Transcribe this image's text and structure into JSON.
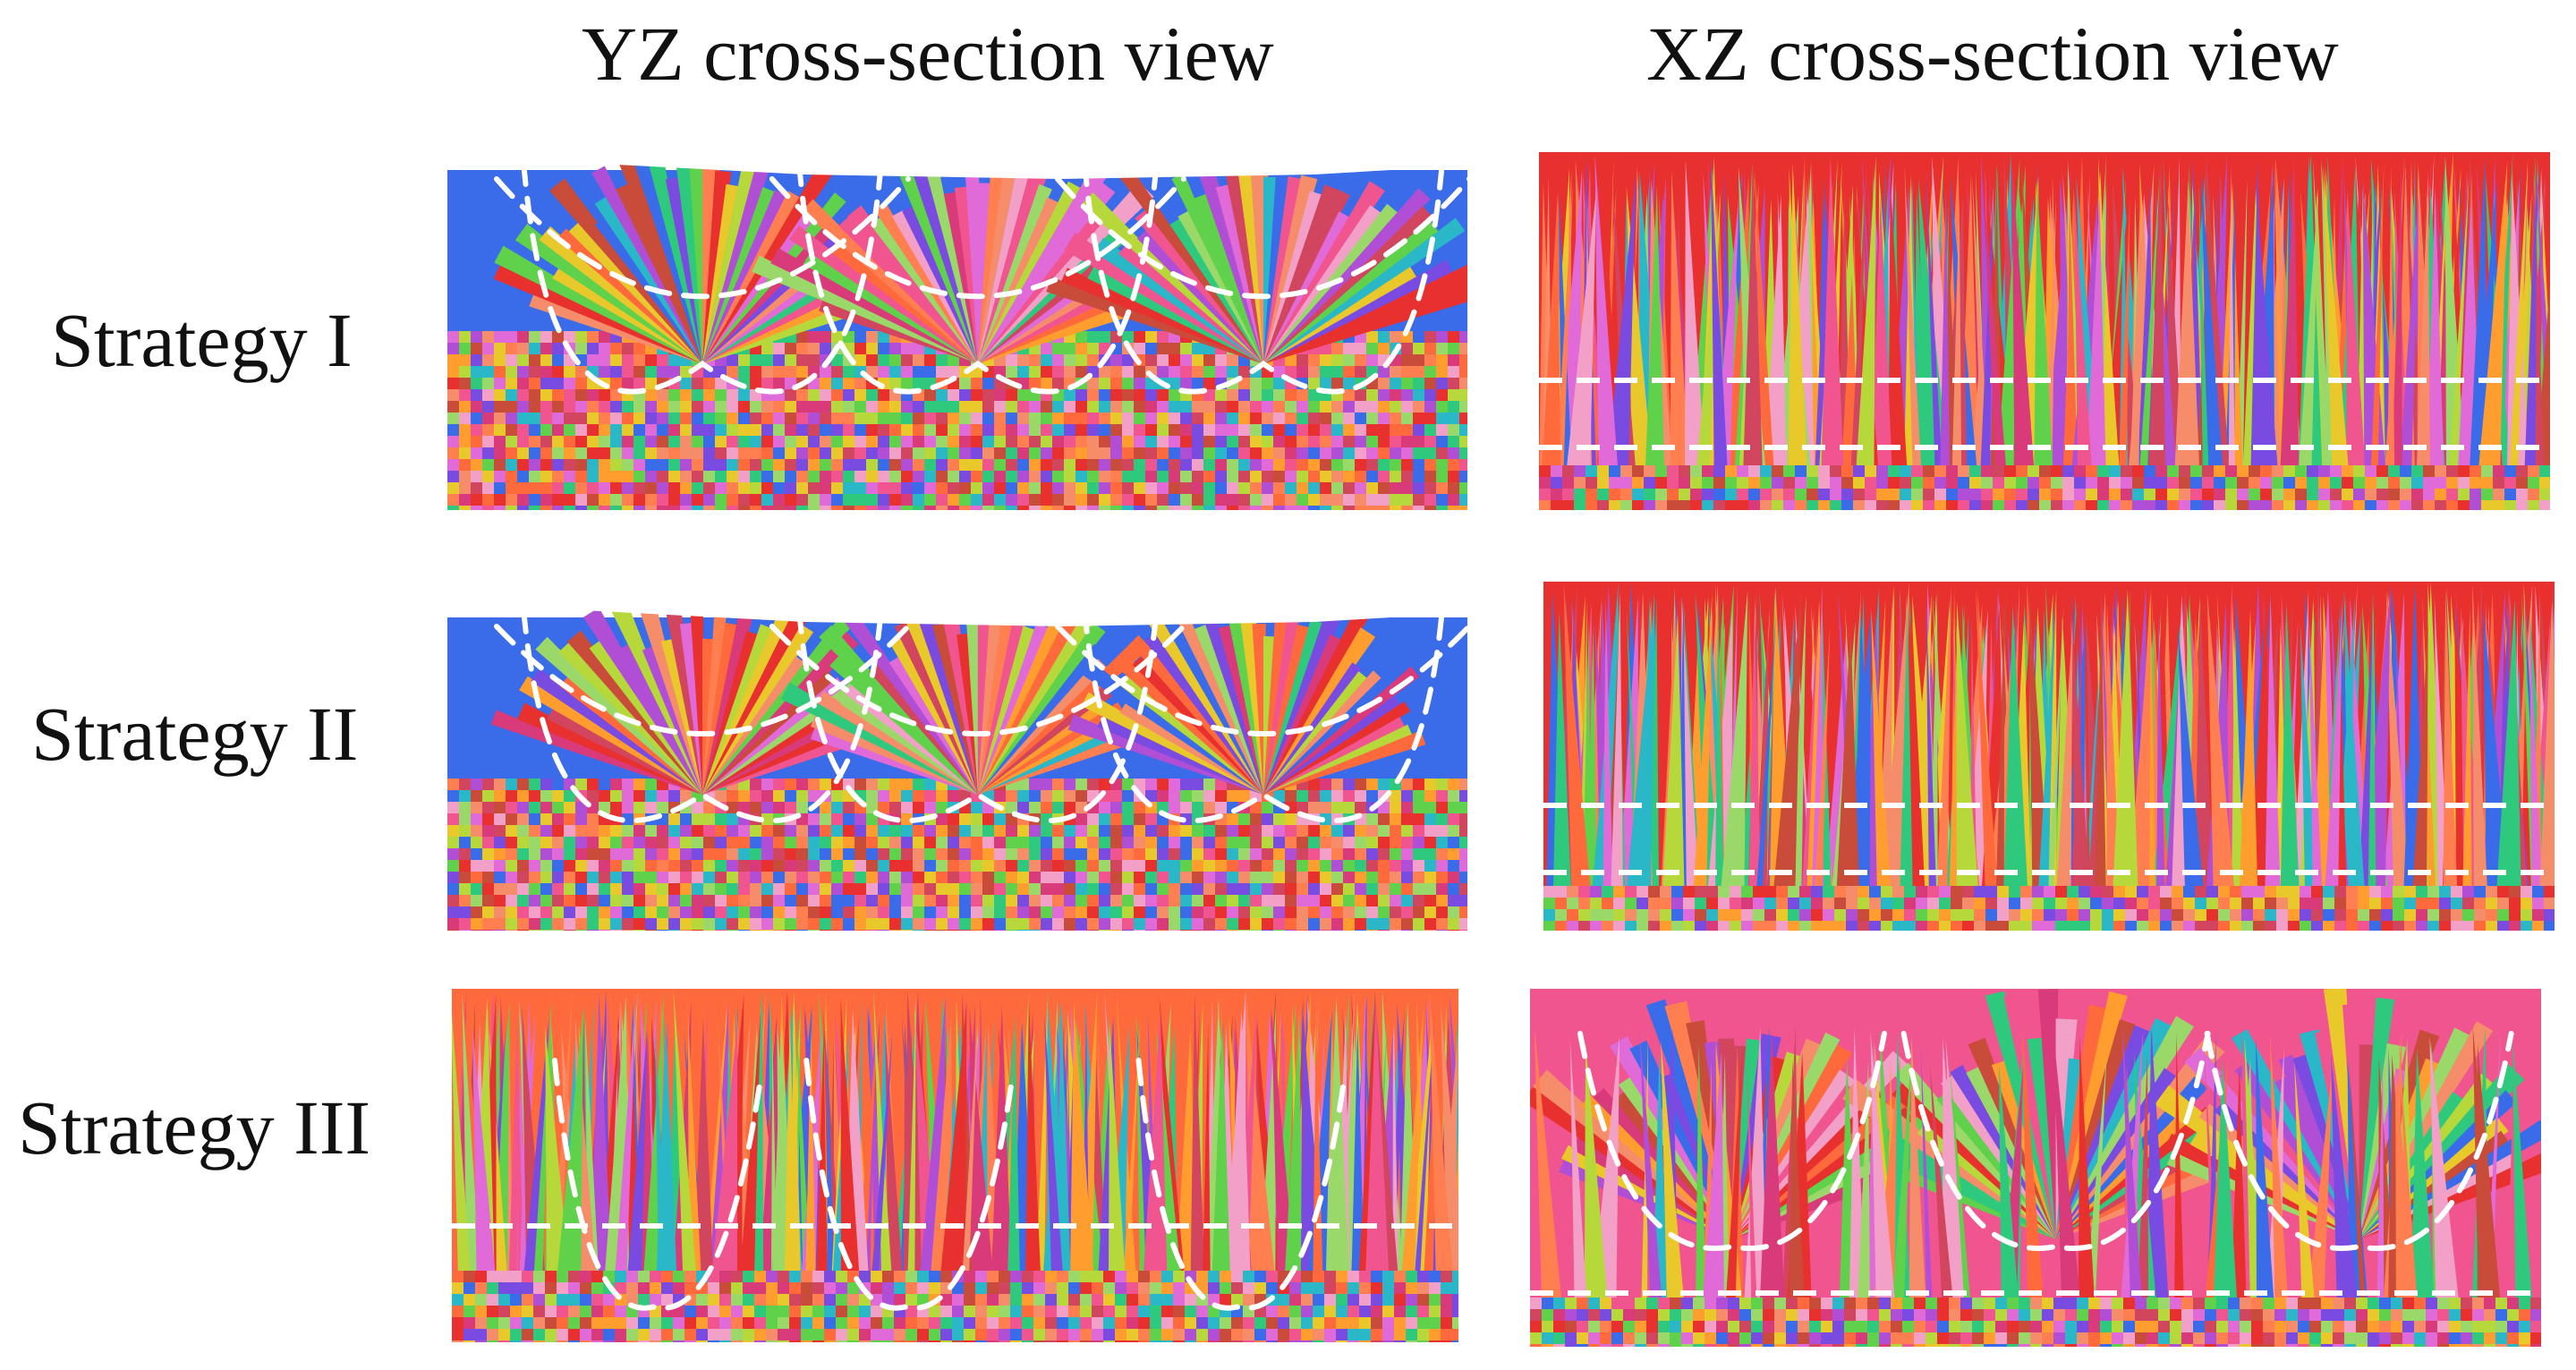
{
  "columns": {
    "yz_title": "YZ cross-section view",
    "xz_title": "XZ cross-section view"
  },
  "rows": [
    {
      "label": "Strategy I"
    },
    {
      "label": "Strategy II"
    },
    {
      "label": "Strategy III"
    }
  ],
  "colors": {
    "background": "#ffffff",
    "boundary_line": "#ffffff",
    "grain_palette": [
      "#e8312f",
      "#ff6a3d",
      "#f0558f",
      "#d93a7a",
      "#ff9d2e",
      "#e9c82c",
      "#b6d83a",
      "#5fd14a",
      "#2fc97d",
      "#2ab7c8",
      "#3a6be8",
      "#7a4be0",
      "#b04fd6",
      "#e06bd8",
      "#f2a0c8",
      "#ff7f50",
      "#c94b3a",
      "#9bd86a",
      "#d2455f",
      "#f58d6b"
    ]
  }
}
